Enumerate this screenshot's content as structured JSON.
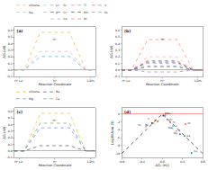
{
  "chart_data": [
    {
      "type": "line",
      "title": "(a)",
      "x_label": "Reaction Coordinate",
      "y_label": "ΔGₙ(eV)",
      "categories": [
        "H⁺+e⁻",
        "H*",
        "1/2H₂"
      ],
      "series": [
        {
          "name": "silicene",
          "color": "#FFA500",
          "values": [
            0,
            0.57,
            0
          ]
        },
        {
          "name": "Li",
          "color": "#66DDDD",
          "values": [
            0,
            0.21,
            0
          ]
        },
        {
          "name": "Na",
          "color": "#88BBDD",
          "values": [
            0,
            0.2,
            0
          ]
        },
        {
          "name": "K",
          "color": "#EE88BB",
          "values": [
            0,
            0.28,
            0
          ]
        }
      ],
      "line_style": "dashed",
      "ylim": [
        -0.1,
        0.65
      ],
      "yticks": [
        -0.1,
        {
          "value": 0,
          "label": "0.0"
        },
        0.1,
        0.2,
        0.3,
        0.4,
        0.5,
        0.6
      ],
      "grid": false,
      "legend": "top",
      "annotations": [
        {
          "text": "H*",
          "x": 1,
          "y": 0.42
        }
      ]
    },
    {
      "type": "line",
      "title": "(b)",
      "x_label": "Reaction Coordinate",
      "y_label": "ΔGₙ(eV)",
      "categories": [
        "H⁺+e⁻",
        "H*",
        "1/2H₂"
      ],
      "series": [
        {
          "name": "Sc",
          "color": "#FF9999",
          "values": [
            0,
            0.2,
            0
          ]
        },
        {
          "name": "Ti",
          "color": "#AA66CC",
          "values": [
            0,
            -0.03,
            0
          ]
        },
        {
          "name": "V",
          "color": "#FF3333",
          "values": [
            0,
            0.14,
            0
          ]
        },
        {
          "name": "Cr",
          "color": "#555555",
          "values": [
            0,
            0.05,
            0
          ]
        },
        {
          "name": "Mn",
          "color": "#222222",
          "values": [
            0,
            0.12,
            0
          ]
        },
        {
          "name": "Fe",
          "color": "#44AA44",
          "values": [
            0,
            0.06,
            0
          ]
        },
        {
          "name": "Co",
          "color": "#8888FF",
          "values": [
            0,
            0.1,
            0
          ]
        },
        {
          "name": "Ni",
          "color": "#FF6644",
          "values": [
            0,
            0.46,
            0
          ]
        }
      ],
      "line_style": "dashed",
      "ylim": [
        -0.1,
        0.65
      ],
      "yticks": [
        -0.1,
        {
          "value": 0,
          "label": "0.0"
        },
        0.1,
        0.2,
        0.3,
        0.4,
        0.5,
        0.6
      ],
      "grid": false,
      "legend": "top",
      "annotations": [
        {
          "text": "H*",
          "x": 1,
          "y": 0.42
        }
      ]
    },
    {
      "type": "line",
      "title": "(c)",
      "x_label": "Reaction Coordinate",
      "y_label": "ΔGₙ(eV)",
      "categories": [
        "H⁺+e⁻",
        "H*",
        "1/2H₂"
      ],
      "series": [
        {
          "name": "silicene",
          "color": "#FFA500",
          "values": [
            0,
            0.57,
            0
          ]
        },
        {
          "name": "Be",
          "color": "#333333",
          "values": [
            0,
            0.08,
            0
          ]
        },
        {
          "name": "Mg",
          "color": "#4466FF",
          "values": [
            0,
            0.35,
            0
          ]
        },
        {
          "name": "Ca",
          "color": "#44AA44",
          "values": [
            0,
            0.42,
            0
          ]
        }
      ],
      "line_style": "dashed",
      "ylim": [
        -0.1,
        0.65
      ],
      "yticks": [
        -0.1,
        {
          "value": 0,
          "label": "0.0"
        },
        0.1,
        0.2,
        0.3,
        0.4,
        0.5,
        0.6
      ],
      "grid": false,
      "legend": "top",
      "annotations": [
        {
          "text": "H*",
          "x": 1,
          "y": 0.42
        }
      ]
    },
    {
      "type": "scatter",
      "title": "(d)",
      "x_label": "ΔGₕ (eV)",
      "y_label": "Log(i0(Acm-2))",
      "labels": [
        "Mn",
        "Co",
        "V",
        "Fe",
        "Be",
        "Sc",
        "Cr",
        "Ti",
        "Li",
        "Na",
        "K",
        "Mg",
        "Ni",
        "Ca",
        "Cu"
      ],
      "x": [
        0.02,
        0.06,
        -0.14,
        -0.09,
        -0.2,
        -0.32,
        0.1,
        0.16,
        0.21,
        0.2,
        0.28,
        0.35,
        0.46,
        0.44,
        0.58
      ],
      "values": [
        -0.4,
        -0.3,
        -1.6,
        -1.9,
        -2.3,
        -3.2,
        -1.4,
        -2.1,
        -3.1,
        -3.6,
        -4.3,
        -5.1,
        -2.6,
        -5.6,
        -9.8
      ],
      "colors": [
        "#333333",
        "#8888FF",
        "#FF3333",
        "#44AA44",
        "#555555",
        "#FF9999",
        "#777777",
        "#AA66CC",
        "#66DDDD",
        "#88BBDD",
        "#EE88BB",
        "#4466FF",
        "#FF6644",
        "#44AA44",
        "#009999"
      ],
      "marker": "circle",
      "series": [
        {
          "type": "line",
          "color": "#000000",
          "line_style": "dashed",
          "x": [
            -0.8,
            0,
            0.8
          ],
          "values": [
            -10,
            0,
            -10
          ]
        }
      ],
      "xlim": [
        -0.8,
        0.8
      ],
      "xticks": [
        -0.8,
        -0.4,
        {
          "value": 0,
          "label": "0.0"
        },
        0.4,
        0.8
      ],
      "ylim": [
        -11,
        1.5
      ],
      "yticks": [
        -10,
        -8,
        -6,
        -4,
        -2,
        0
      ],
      "grid": false
    }
  ]
}
